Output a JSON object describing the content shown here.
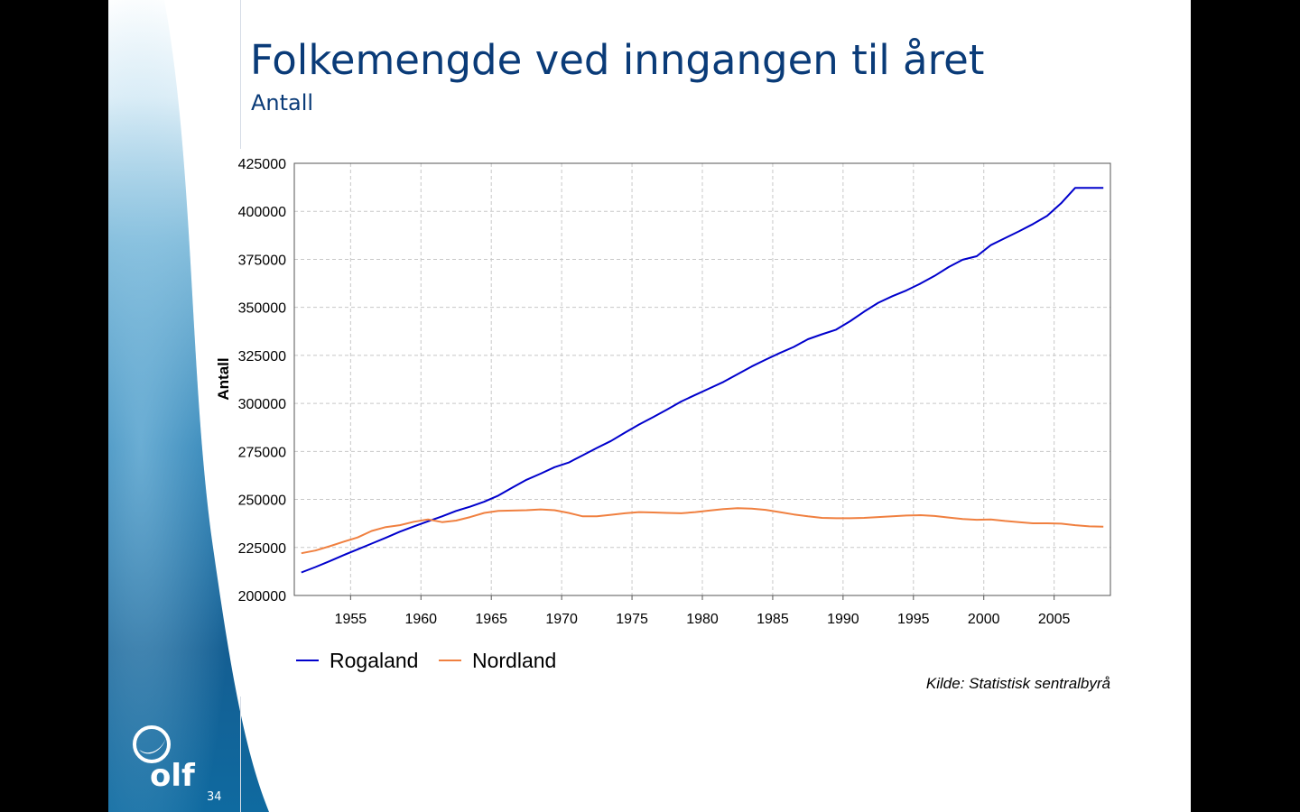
{
  "slide": {
    "title": "Folkemengde ved inngangen til året",
    "subtitle": "Antall",
    "source": "Kilde: Statistisk sentralbyrå",
    "page_number": "34",
    "logo_text": "olf"
  },
  "chart_data": {
    "type": "line",
    "title": "",
    "xlabel": "",
    "ylabel": "Antall",
    "xlim": [
      1951,
      2009
    ],
    "ylim": [
      200000,
      425000
    ],
    "x_ticks": [
      1955,
      1960,
      1965,
      1970,
      1975,
      1980,
      1985,
      1990,
      1995,
      2000,
      2005
    ],
    "y_ticks": [
      200000,
      225000,
      250000,
      275000,
      300000,
      325000,
      350000,
      375000,
      400000,
      425000
    ],
    "grid": true,
    "legend_position": "bottom-left",
    "x": [
      1951.5,
      1952.5,
      1953.5,
      1954.5,
      1955.5,
      1956.5,
      1957.5,
      1958.5,
      1959.5,
      1960.5,
      1961.5,
      1962.5,
      1963.5,
      1964.5,
      1965.5,
      1966.5,
      1967.5,
      1968.5,
      1969.5,
      1970.5,
      1971.5,
      1972.5,
      1973.5,
      1974.5,
      1975.5,
      1976.5,
      1977.5,
      1978.5,
      1979.5,
      1980.5,
      1981.5,
      1982.5,
      1983.5,
      1984.5,
      1985.5,
      1986.5,
      1987.5,
      1988.5,
      1989.5,
      1990.5,
      1991.5,
      1992.5,
      1993.5,
      1994.5,
      1995.5,
      1996.5,
      1997.5,
      1998.5,
      1999.5,
      2000.5,
      2001.5,
      2002.5,
      2003.5,
      2004.5,
      2005.5,
      2006.5,
      2007.5,
      2008.5
    ],
    "series": [
      {
        "name": "Rogaland",
        "color": "#0000cc",
        "values": [
          212000,
          214800,
          217800,
          221000,
          224000,
          227000,
          230000,
          233200,
          236000,
          238600,
          241200,
          244000,
          246200,
          248800,
          252000,
          256200,
          260200,
          263400,
          266800,
          269200,
          273000,
          276800,
          280400,
          284800,
          289000,
          292800,
          296800,
          301000,
          304400,
          307800,
          311200,
          315200,
          319200,
          322800,
          326200,
          329400,
          333400,
          336000,
          338400,
          342800,
          347800,
          352400,
          355800,
          358800,
          362400,
          366400,
          371000,
          374800,
          376600,
          382400,
          386000,
          389600,
          393400,
          397600,
          404200,
          412200,
          412200,
          412200
        ]
      },
      {
        "name": "Nordland",
        "color": "#f08040",
        "values": [
          222000,
          223400,
          225600,
          228000,
          230200,
          233600,
          235600,
          236600,
          238400,
          239600,
          238200,
          239000,
          240800,
          243000,
          244000,
          244200,
          244400,
          244800,
          244400,
          243000,
          241200,
          241200,
          242000,
          242800,
          243400,
          243200,
          243000,
          242800,
          243400,
          244200,
          245000,
          245400,
          245200,
          244600,
          243400,
          242200,
          241200,
          240400,
          240200,
          240200,
          240400,
          240800,
          241200,
          241600,
          241800,
          241400,
          240600,
          239800,
          239400,
          239600,
          238800,
          238200,
          237600,
          237600,
          237400,
          236600,
          236000,
          235800
        ]
      }
    ]
  }
}
